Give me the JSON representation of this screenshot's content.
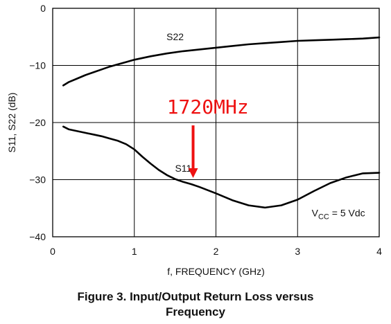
{
  "figure_caption": {
    "line1": "Figure 3. Input/Output Return Loss versus",
    "line2": "Frequency"
  },
  "chart_data": {
    "type": "line",
    "xlabel": "f, FREQUENCY (GHz)",
    "ylabel": "S11, S22 (dB)",
    "xlim": [
      0,
      4
    ],
    "ylim": [
      -40,
      0
    ],
    "x_ticks": [
      0,
      1,
      2,
      3,
      4
    ],
    "x_tick_labels": [
      "0",
      "1",
      "2",
      "3",
      "4"
    ],
    "y_ticks": [
      0,
      -10,
      -20,
      -30,
      -40
    ],
    "y_tick_labels": [
      "0",
      "−10",
      "−20",
      "−30",
      "−40"
    ],
    "grid": true,
    "series": [
      {
        "name": "S22",
        "x": [
          0.13,
          0.2,
          0.3,
          0.4,
          0.5,
          0.6,
          0.7,
          0.8,
          0.9,
          1.0,
          1.2,
          1.4,
          1.6,
          1.8,
          2.0,
          2.2,
          2.4,
          2.6,
          2.8,
          3.0,
          3.2,
          3.4,
          3.6,
          3.8,
          4.0
        ],
        "y": [
          -13.5,
          -12.9,
          -12.3,
          -11.7,
          -11.2,
          -10.7,
          -10.2,
          -9.8,
          -9.4,
          -9.0,
          -8.4,
          -7.9,
          -7.5,
          -7.2,
          -6.9,
          -6.6,
          -6.3,
          -6.1,
          -5.9,
          -5.7,
          -5.6,
          -5.5,
          -5.4,
          -5.3,
          -5.1
        ]
      },
      {
        "name": "S11",
        "x": [
          0.13,
          0.2,
          0.3,
          0.4,
          0.5,
          0.6,
          0.7,
          0.8,
          0.9,
          1.0,
          1.1,
          1.2,
          1.3,
          1.4,
          1.5,
          1.6,
          1.7,
          1.8,
          2.0,
          2.2,
          2.4,
          2.6,
          2.8,
          3.0,
          3.2,
          3.4,
          3.6,
          3.8,
          4.0
        ],
        "y": [
          -20.7,
          -21.2,
          -21.5,
          -21.8,
          -22.1,
          -22.4,
          -22.8,
          -23.2,
          -23.8,
          -24.7,
          -26.0,
          -27.2,
          -28.3,
          -29.2,
          -29.9,
          -30.4,
          -30.8,
          -31.3,
          -32.4,
          -33.6,
          -34.5,
          -34.9,
          -34.5,
          -33.5,
          -32.0,
          -30.6,
          -29.6,
          -28.9,
          -28.8
        ]
      }
    ],
    "series_labels": [
      {
        "text": "S22",
        "x": 1.5,
        "y": -5.6
      },
      {
        "text": "S11",
        "x": 1.6,
        "y": -28.6
      }
    ],
    "annotations": {
      "marker_label": "1720MHz",
      "marker_label_pos": {
        "x": 1.9,
        "y": -18.4
      },
      "marker_x": 1.72,
      "arrow_from_y": -20.5,
      "arrow_to_y": -29.7,
      "marker_color": "#ee1111",
      "vcc_note": {
        "prefix": "V",
        "subscript": "CC",
        "suffix": " = 5 Vdc",
        "x": 3.5,
        "y": -36.4
      }
    },
    "line_color": "#000000",
    "grid_color": "#000000"
  }
}
